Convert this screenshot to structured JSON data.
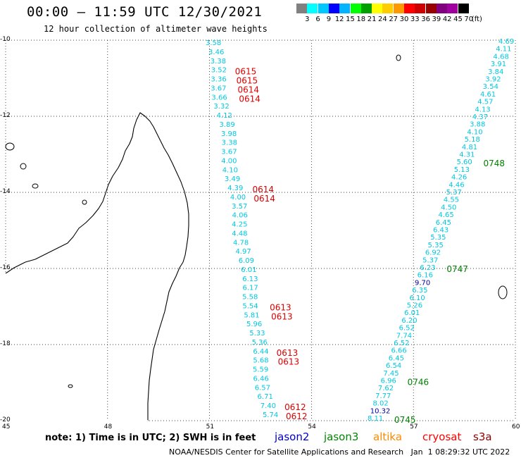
{
  "header": {
    "title": "00:00 — 11:59 UTC 12/30/2021",
    "subtitle": "12 hour collection of altimeter wave heights"
  },
  "colorbar": {
    "labels": [
      "3",
      "6",
      "9",
      "12",
      "15",
      "18",
      "21",
      "24",
      "27",
      "30",
      "33",
      "36",
      "39",
      "42",
      "45",
      "70"
    ],
    "colors": [
      "#808080",
      "#00ffff",
      "#00c8ff",
      "#0000ff",
      "#00b4ff",
      "#00ff00",
      "#00a000",
      "#ffff00",
      "#ffcc00",
      "#ff9900",
      "#ff0000",
      "#cc0000",
      "#990000",
      "#800080",
      "#a000a0",
      "#000000"
    ],
    "unit": "(ft)"
  },
  "map": {
    "lat_labels": [
      "-10",
      "-12",
      "-14",
      "-16",
      "-18",
      "-20"
    ],
    "lon_labels": [
      "45",
      "48",
      "51",
      "54",
      "57",
      "60"
    ],
    "track_swh_color": "#00c8e0",
    "time_color_red": "#dd0000",
    "time_color_green": "#008000",
    "track1": {
      "swh": [
        "3.58",
        "3.46",
        "3.38",
        "3.52",
        "3.36",
        "3.67",
        "3.66",
        "3.32",
        "4.12",
        "3.89",
        "3.98",
        "3.38",
        "3.67",
        "4.00",
        "4.10",
        "3.49",
        "4.39",
        "4.00",
        "3.57",
        "4.06",
        "4.25",
        "4.48",
        "4.78",
        "4.97",
        "6.09",
        "6.01",
        "6.13",
        "6.17",
        "5.58",
        "5.54",
        "5.81",
        "5.96",
        "5.33",
        "5.36",
        "6.44",
        "5.68",
        "5.59",
        "6.46",
        "6.57",
        "6.71",
        "7.40",
        "5.74"
      ],
      "times": [
        "0615",
        "0615",
        "0614",
        "0614",
        "0614",
        "0614",
        "0613",
        "0613",
        "0613",
        "0613",
        "0612",
        "0612"
      ]
    },
    "track2": {
      "swh": [
        "4.69",
        "4.11",
        "4.68",
        "3.91",
        "3.84",
        "3.92",
        "3.54",
        "4.61",
        "4.57",
        "4.13",
        "4.37",
        "3.88",
        "4.10",
        "5.18",
        "4.81",
        "4.31",
        "5.60",
        "5.13",
        "4.26",
        "4.46",
        "5.37",
        "4.55",
        "4.50",
        "4.65",
        "6.45",
        "6.43",
        "5.35",
        "5.35",
        "6.92",
        "5.37",
        "6.23",
        "6.16",
        "9.70",
        "6.35",
        "6.10",
        "5.26",
        "6.01",
        "6.20",
        "6.52",
        "7.74",
        "6.52",
        "6.66",
        "6.45",
        "6.54",
        "7.45",
        "6.96",
        "7.62",
        "7.77",
        "8.02",
        "10.32",
        "8.11"
      ],
      "times": [
        "0748",
        "0747",
        "0746",
        "0745"
      ]
    }
  },
  "legend": {
    "note": "note: 1) Time is in UTC; 2) SWH is in feet",
    "satellites": [
      {
        "name": "jason2",
        "color": "#0000cc"
      },
      {
        "name": "jason3",
        "color": "#008800"
      },
      {
        "name": "altika",
        "color": "#ff8800"
      },
      {
        "name": "cryosat",
        "color": "#ff0000"
      },
      {
        "name": "s3a",
        "color": "#8b0000"
      }
    ]
  },
  "footer": {
    "credit": "NOAA/NESDIS Center for Satellite Applications and Research   Jan  1 08:29:32 UTC 2022"
  }
}
